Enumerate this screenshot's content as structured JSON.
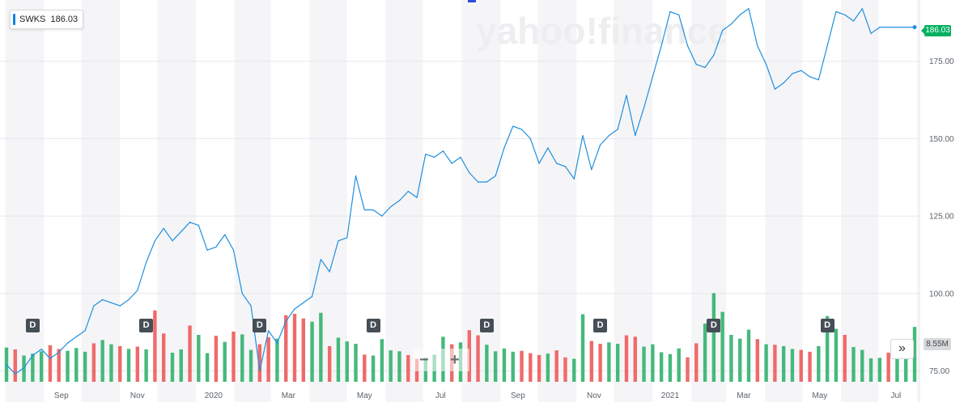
{
  "symbol": {
    "ticker": "SWKS",
    "price": "186.03"
  },
  "watermark": "yahoo!finance",
  "volume_label": "8.55M",
  "dividend_label": "D",
  "controls": {
    "zoom_out": "−",
    "zoom_in": "+",
    "scroll_forward": "»"
  },
  "colors": {
    "line": "#1e8fe0",
    "up": "#45b97c",
    "down": "#ef6a6a",
    "price_tag": "#00b061",
    "band": "#f5f5f7",
    "grid": "#e6e7ea"
  },
  "chart_data": {
    "type": "line",
    "title": "",
    "y_axis": {
      "ticks": [
        "75.00",
        "100.00",
        "125.00",
        "150.00",
        "175.00"
      ],
      "ylim": [
        72,
        194
      ],
      "position": "right"
    },
    "x_axis": {
      "ticks": [
        "Sep",
        "Nov",
        "2020",
        "Mar",
        "May",
        "Jul",
        "Sep",
        "Nov",
        "2021",
        "Mar",
        "May",
        "Jul"
      ]
    },
    "series": [
      {
        "name": "SWKS",
        "x": [
          "2019-08-02",
          "2019-08-09",
          "2019-08-16",
          "2019-08-23",
          "2019-08-30",
          "2019-09-06",
          "2019-09-13",
          "2019-09-20",
          "2019-09-27",
          "2019-10-04",
          "2019-10-11",
          "2019-10-18",
          "2019-10-25",
          "2019-11-01",
          "2019-11-08",
          "2019-11-15",
          "2019-11-22",
          "2019-11-29",
          "2019-12-06",
          "2019-12-13",
          "2019-12-20",
          "2019-12-27",
          "2020-01-03",
          "2020-01-10",
          "2020-01-17",
          "2020-01-24",
          "2020-01-31",
          "2020-02-07",
          "2020-02-14",
          "2020-02-21",
          "2020-02-28",
          "2020-03-06",
          "2020-03-13",
          "2020-03-20",
          "2020-03-27",
          "2020-04-03",
          "2020-04-10",
          "2020-04-17",
          "2020-04-24",
          "2020-05-01",
          "2020-05-08",
          "2020-05-15",
          "2020-05-22",
          "2020-05-29",
          "2020-06-05",
          "2020-06-12",
          "2020-06-19",
          "2020-06-26",
          "2020-07-03",
          "2020-07-10",
          "2020-07-17",
          "2020-07-24",
          "2020-07-31",
          "2020-08-07",
          "2020-08-14",
          "2020-08-21",
          "2020-08-28",
          "2020-09-04",
          "2020-09-11",
          "2020-09-18",
          "2020-09-25",
          "2020-10-02",
          "2020-10-09",
          "2020-10-16",
          "2020-10-23",
          "2020-10-30",
          "2020-11-06",
          "2020-11-13",
          "2020-11-20",
          "2020-11-27",
          "2020-12-04",
          "2020-12-11",
          "2020-12-18",
          "2020-12-25",
          "2021-01-01",
          "2021-01-08",
          "2021-01-15",
          "2021-01-22",
          "2021-01-29",
          "2021-02-05",
          "2021-02-12",
          "2021-02-19",
          "2021-02-26",
          "2021-03-05",
          "2021-03-12",
          "2021-03-19",
          "2021-03-26",
          "2021-04-02",
          "2021-04-09",
          "2021-04-16",
          "2021-04-23",
          "2021-04-30",
          "2021-05-07",
          "2021-05-14",
          "2021-05-21",
          "2021-05-28",
          "2021-06-04",
          "2021-06-11",
          "2021-06-18",
          "2021-06-25",
          "2021-07-02",
          "2021-07-09",
          "2021-07-16",
          "2021-07-23",
          "2021-07-30"
        ],
        "values": [
          77,
          74,
          76,
          80,
          82,
          79,
          81,
          84,
          86,
          88,
          96,
          98,
          97,
          96,
          98,
          101,
          110,
          117,
          121,
          117,
          120,
          123,
          122,
          114,
          115,
          119,
          114,
          100,
          96,
          75,
          88,
          84,
          91,
          95,
          97,
          99,
          111,
          107,
          117,
          118,
          138,
          127,
          127,
          125,
          128,
          130,
          133,
          131,
          145,
          144,
          146,
          142,
          144,
          139,
          136,
          136,
          138,
          147,
          154,
          153,
          150,
          142,
          147,
          142,
          141,
          137,
          151,
          140,
          148,
          151,
          153,
          164,
          151,
          160,
          170,
          180,
          191,
          190,
          180,
          174,
          173,
          177,
          185,
          187,
          190,
          192,
          180,
          174,
          166,
          168,
          171,
          172,
          170,
          169,
          180,
          191,
          190,
          188,
          192,
          184,
          186,
          186,
          186,
          186,
          186
        ]
      }
    ],
    "volume": {
      "unit": "shares",
      "values_m": [
        7.3,
        6.9,
        5.6,
        6.0,
        6.5,
        7.8,
        7.0,
        6.6,
        7.2,
        6.4,
        8.2,
        8.9,
        8.0,
        7.6,
        7.0,
        7.5,
        6.9,
        15.2,
        10.3,
        6.2,
        6.9,
        12.0,
        10.0,
        6.1,
        9.8,
        8.5,
        10.7,
        10.1,
        6.8,
        8.0,
        9.5,
        9.2,
        14.2,
        14.5,
        13.5,
        12.8,
        14.7,
        7.6,
        9.4,
        8.6,
        8.1,
        5.8,
        5.6,
        9.1,
        6.7,
        6.5,
        5.7,
        4.9,
        5.1,
        5.8,
        9.6,
        8.0,
        8.4,
        11.0,
        9.9,
        7.9,
        6.5,
        7.1,
        6.4,
        6.6,
        6.1,
        5.7,
        6.0,
        6.7,
        5.2,
        4.9,
        14.4,
        8.7,
        8.1,
        8.4,
        8.1,
        9.9,
        9.6,
        7.5,
        8.0,
        6.3,
        5.9,
        7.1,
        5.2,
        8.2,
        12.4,
        18.9,
        14.9,
        10.0,
        9.2,
        11.1,
        9.1,
        8.0,
        7.9,
        7.6,
        7.0,
        6.8,
        6.4,
        7.6,
        14.0,
        11.3,
        10.0,
        7.4,
        6.8,
        5.0,
        5.1,
        6.2,
        8.4,
        7.5,
        11.7
      ],
      "direction": [
        1,
        0,
        1,
        1,
        1,
        0,
        0,
        1,
        1,
        1,
        0,
        1,
        1,
        0,
        1,
        0,
        1,
        0,
        0,
        1,
        1,
        0,
        1,
        1,
        0,
        1,
        0,
        1,
        1,
        0,
        0,
        1,
        0,
        0,
        0,
        1,
        1,
        0,
        1,
        1,
        1,
        0,
        1,
        1,
        1,
        1,
        0,
        0,
        1,
        1,
        1,
        0,
        1,
        0,
        0,
        1,
        1,
        1,
        1,
        0,
        0,
        0,
        1,
        0,
        0,
        1,
        1,
        0,
        0,
        1,
        1,
        0,
        0,
        1,
        1,
        1,
        1,
        1,
        0,
        0,
        1,
        1,
        1,
        1,
        1,
        1,
        0,
        1,
        0,
        1,
        1,
        0,
        0,
        1,
        1,
        1,
        0,
        1,
        1,
        1,
        1,
        0,
        1,
        1,
        1
      ]
    },
    "dividend_dates": [
      "2019-08-23",
      "2019-11-22",
      "2020-02-21",
      "2020-05-22",
      "2020-08-21",
      "2020-11-20",
      "2021-02-19",
      "2021-05-21"
    ],
    "grid": true,
    "legend": "top-left"
  }
}
